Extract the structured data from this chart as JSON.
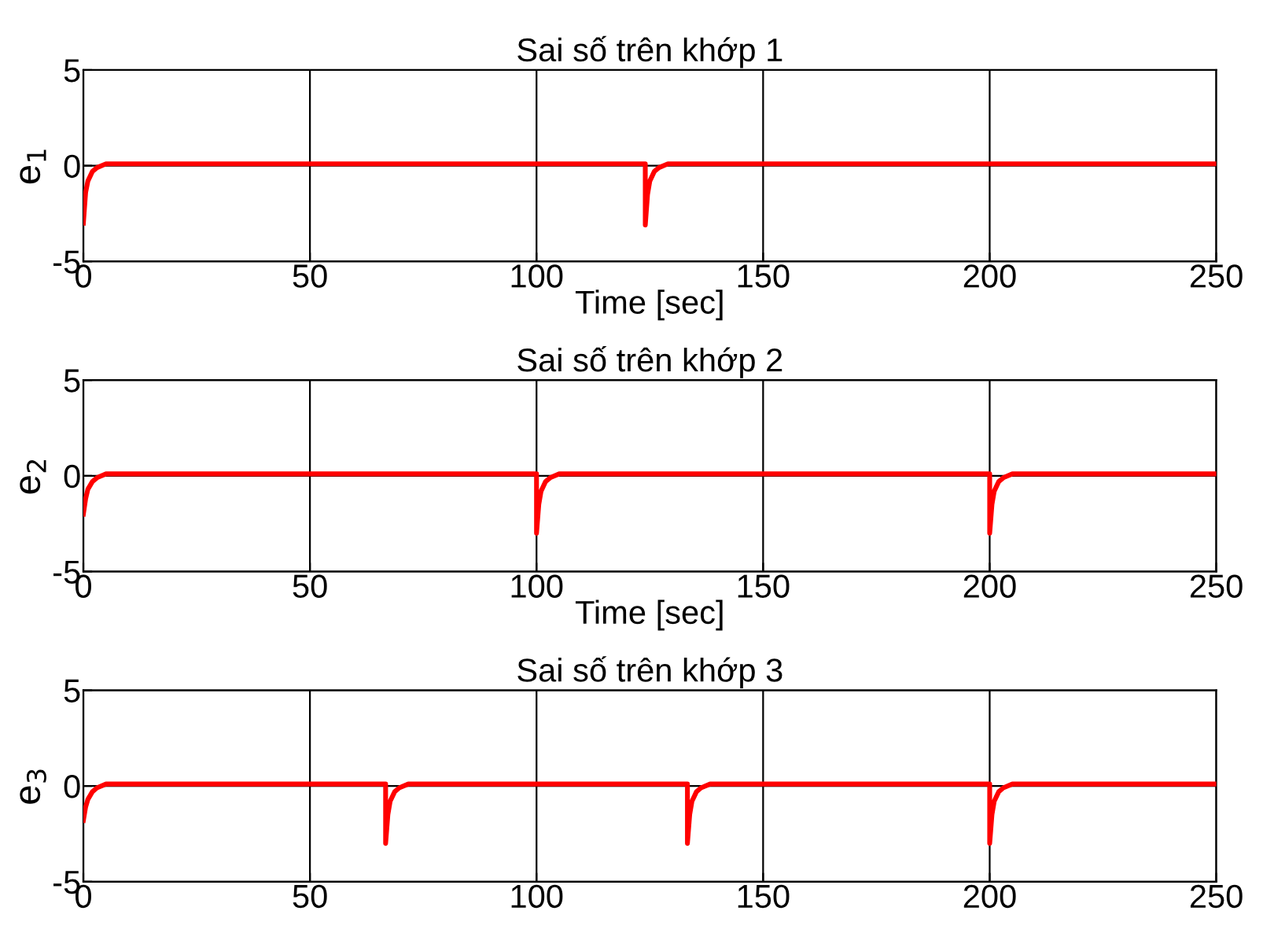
{
  "chart_data": [
    {
      "type": "line",
      "title": "Sai số trên khớp 1",
      "xlabel": "Time [sec]",
      "ylabel": "e$_{1}$",
      "xlim": [
        0,
        250
      ],
      "ylim": [
        -5,
        5
      ],
      "xticks": [
        0,
        50,
        100,
        150,
        200,
        250
      ],
      "yticks": [
        -5,
        0,
        5
      ],
      "grid": true,
      "series": [
        {
          "color": "#ff0000",
          "x": [
            0,
            0.5,
            1,
            2,
            3,
            5,
            124,
            124,
            124.5,
            125,
            126,
            127,
            129,
            250
          ],
          "values": [
            -3,
            -1.4,
            -0.8,
            -0.3,
            -0.1,
            0.1,
            0.1,
            -3.1,
            -1.5,
            -0.8,
            -0.3,
            -0.1,
            0.1,
            0.1
          ]
        }
      ]
    },
    {
      "type": "line",
      "title": "Sai số trên khớp 2",
      "xlabel": "Time [sec]",
      "ylabel": "e$_{2}$",
      "xlim": [
        0,
        250
      ],
      "ylim": [
        -5,
        5
      ],
      "xticks": [
        0,
        50,
        100,
        150,
        200,
        250
      ],
      "yticks": [
        -5,
        0,
        5
      ],
      "grid": true,
      "series": [
        {
          "color": "#ff0000",
          "x": [
            0,
            0.5,
            1,
            2,
            3,
            5,
            100,
            100,
            100.5,
            101,
            102,
            103,
            105,
            200,
            200,
            200.5,
            201,
            202,
            203,
            205,
            250
          ],
          "values": [
            -2,
            -1.2,
            -0.7,
            -0.3,
            -0.1,
            0.1,
            0.1,
            -3,
            -1.5,
            -0.8,
            -0.3,
            -0.1,
            0.1,
            0.1,
            -3,
            -1.5,
            -0.8,
            -0.3,
            -0.1,
            0.1,
            0.1
          ]
        }
      ]
    },
    {
      "type": "line",
      "title": "Sai số trên khớp 3",
      "ylabel": "e$_{3}$",
      "xlim": [
        0,
        250
      ],
      "ylim": [
        -5,
        5
      ],
      "xticks": [
        0,
        50,
        100,
        150,
        200,
        250
      ],
      "yticks": [
        -5,
        0,
        5
      ],
      "grid": true,
      "series": [
        {
          "color": "#ff0000",
          "x": [
            0,
            0.5,
            1,
            2,
            3,
            5,
            66.7,
            66.7,
            67.2,
            67.7,
            68.7,
            69.7,
            71.7,
            133.3,
            133.3,
            133.8,
            134.3,
            135.3,
            136.3,
            138.3,
            200,
            200,
            200.5,
            201,
            202,
            203,
            205,
            250
          ],
          "values": [
            -1.8,
            -1.1,
            -0.7,
            -0.3,
            -0.1,
            0.1,
            0.1,
            -3,
            -1.5,
            -0.8,
            -0.3,
            -0.1,
            0.1,
            0.1,
            -3,
            -1.5,
            -0.8,
            -0.3,
            -0.1,
            0.1,
            0.1,
            -3,
            -1.5,
            -0.8,
            -0.3,
            -0.1,
            0.1,
            0.1
          ]
        }
      ]
    }
  ]
}
